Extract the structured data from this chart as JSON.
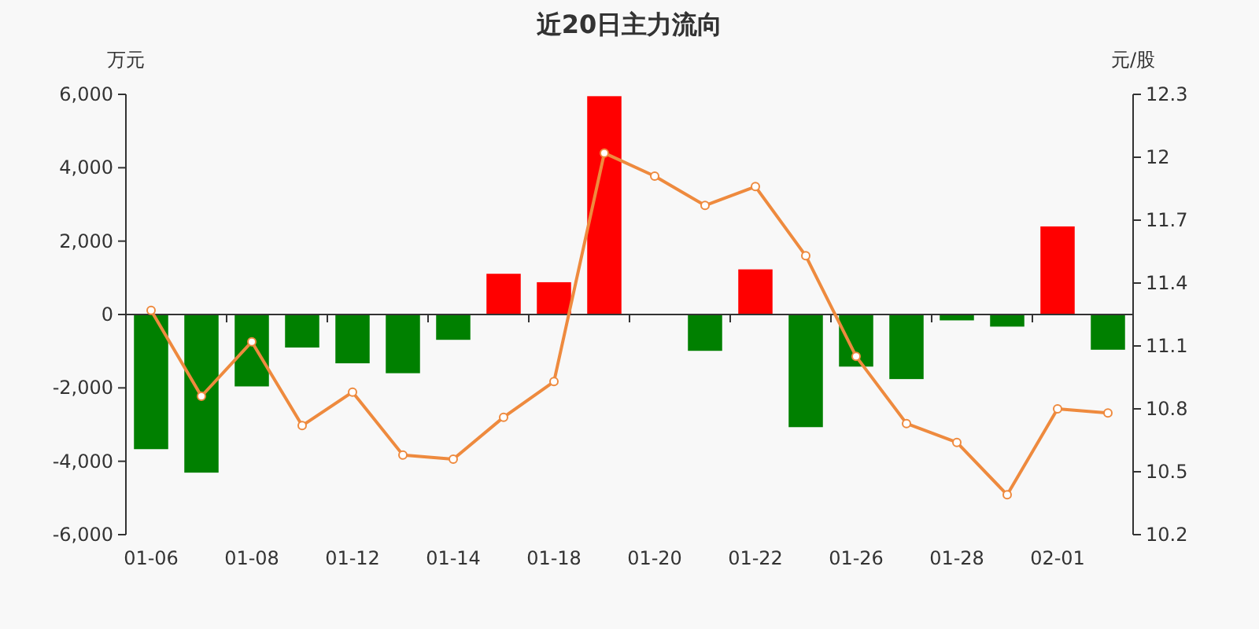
{
  "chart_data": {
    "type": "bar",
    "title": "近20日主力流向",
    "ylabel": "万元",
    "y2label": "元/股",
    "categories": [
      "01-06",
      null,
      "01-08",
      null,
      "01-12",
      null,
      "01-14",
      null,
      "01-18",
      null,
      "01-20",
      null,
      "01-22",
      null,
      "01-26",
      null,
      "01-28",
      null,
      "02-01",
      null
    ],
    "series": [
      {
        "type": "bar",
        "values": [
          -3670,
          -4310,
          -1960,
          -900,
          -1330,
          -1600,
          -690,
          1110,
          880,
          5950,
          0,
          -990,
          1230,
          -3070,
          -1420,
          -1760,
          -160,
          -330,
          2400,
          -960
        ],
        "colors": [
          "#008000",
          "#008000",
          "#008000",
          "#008000",
          "#008000",
          "#008000",
          "#008000",
          "#ff0000",
          "#ff0000",
          "#ff0000",
          "#ff0000",
          "#008000",
          "#ff0000",
          "#008000",
          "#008000",
          "#008000",
          "#008000",
          "#008000",
          "#ff0000",
          "#008000"
        ]
      },
      {
        "type": "line",
        "axis": "y2",
        "color": "#ee8a3e",
        "values": [
          11.27,
          10.86,
          11.12,
          10.72,
          10.88,
          10.58,
          10.56,
          10.76,
          10.93,
          12.02,
          11.91,
          11.77,
          11.86,
          11.53,
          11.05,
          10.73,
          10.64,
          10.39,
          10.8,
          10.78
        ]
      }
    ],
    "ylim": [
      -6000,
      6000
    ],
    "yticks": [
      {
        "value": -6000,
        "label": "-6,000"
      },
      {
        "value": -4000,
        "label": "-4,000"
      },
      {
        "value": -2000,
        "label": "-2,000"
      },
      0,
      {
        "value": 2000,
        "label": "2,000"
      },
      {
        "value": 4000,
        "label": "4,000"
      },
      {
        "value": 6000,
        "label": "6,000"
      }
    ],
    "y2lim": [
      10.2,
      12.3
    ],
    "y2ticks": [
      10.2,
      10.5,
      10.8,
      11.1,
      11.4,
      11.7,
      12,
      12.3
    ],
    "marker": "circle"
  }
}
